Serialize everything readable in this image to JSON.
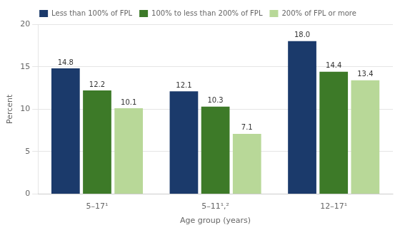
{
  "chart_data": {
    "type": "bar",
    "categories": [
      "5–17¹",
      "5–11¹,²",
      "12–17¹"
    ],
    "series": [
      {
        "name": "Less than 100% of FPL",
        "color": "#1b3a6b",
        "values": [
          14.8,
          12.1,
          18.0
        ],
        "value_labels": [
          "14.8",
          "12.1",
          "18.0"
        ]
      },
      {
        "name": "100% to less than 200% of FPL",
        "color": "#3d7a28",
        "values": [
          12.2,
          10.3,
          14.4
        ],
        "value_labels": [
          "12.2",
          "10.3",
          "14.4"
        ]
      },
      {
        "name": "200% of FPL or more",
        "color": "#b8d898",
        "values": [
          10.1,
          7.1,
          13.4
        ],
        "value_labels": [
          "10.1",
          "7.1",
          "13.4"
        ]
      }
    ],
    "xlabel": "Age group (years)",
    "ylabel": "Percent",
    "ylim": [
      0,
      20
    ],
    "yticks": [
      0,
      5,
      10,
      15,
      20
    ],
    "grid": true,
    "legend": "top",
    "data_labels": true
  }
}
